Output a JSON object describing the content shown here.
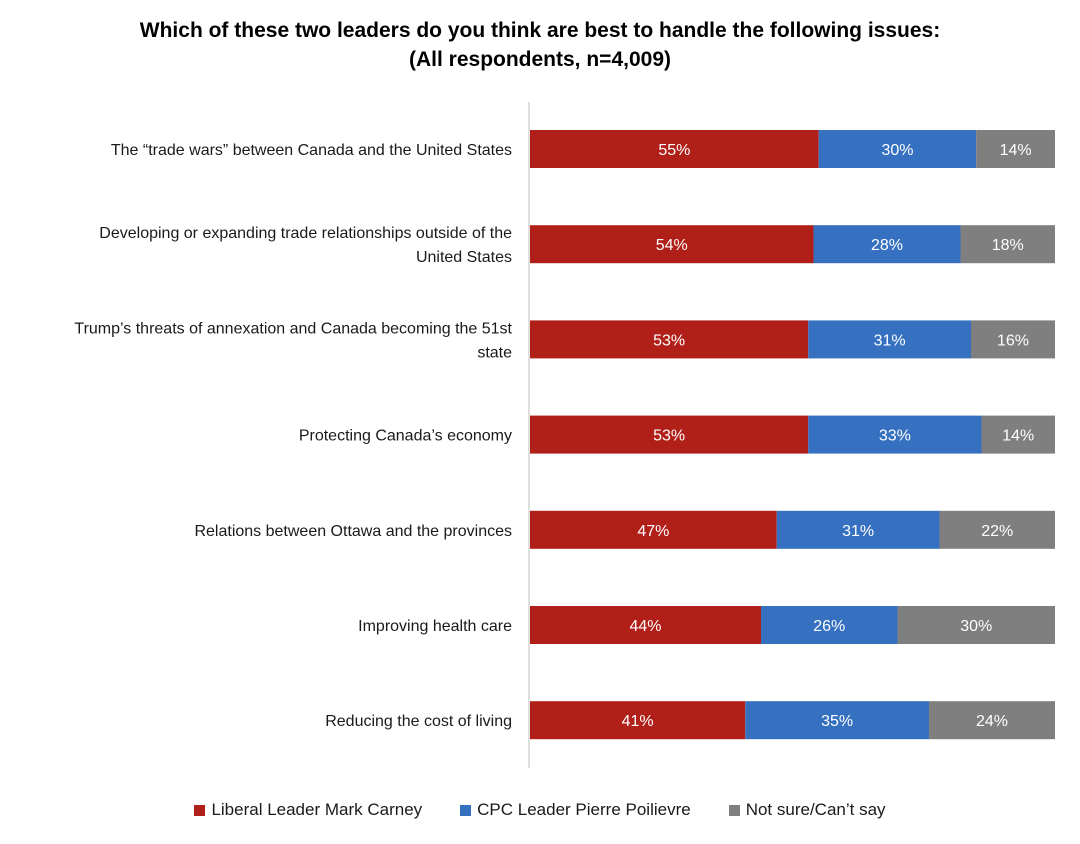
{
  "chart_data": {
    "type": "bar",
    "orientation": "horizontal",
    "stacked": true,
    "title": [
      "Which of these two leaders do you think are best to handle the following issues:",
      "(All respondents, n=4,009)"
    ],
    "categories": [
      [
        "The “trade wars” between Canada and the United States"
      ],
      [
        "Developing or expanding trade relationships outside of the",
        "United States"
      ],
      [
        "Trump’s threats of annexation and Canada becoming the 51st",
        "state"
      ],
      [
        "Protecting Canada’s economy"
      ],
      [
        "Relations between Ottawa and the provinces"
      ],
      [
        "Improving health care"
      ],
      [
        "Reducing the cost of living"
      ]
    ],
    "series": [
      {
        "name": "Liberal Leader Mark Carney",
        "color": "#b11f19",
        "values": [
          55,
          54,
          53,
          53,
          47,
          44,
          41
        ],
        "labels": [
          "55%",
          "54%",
          "53%",
          "53%",
          "47%",
          "44%",
          "41%"
        ]
      },
      {
        "name": "CPC Leader Pierre Poilievre",
        "color": "#3571c0",
        "values": [
          30,
          28,
          31,
          33,
          31,
          26,
          35
        ],
        "labels": [
          "30%",
          "28%",
          "31%",
          "33%",
          "31%",
          "26%",
          "35%"
        ]
      },
      {
        "name": "Not sure/Can’t say",
        "color": "#7f7f7f",
        "values": [
          14,
          18,
          16,
          14,
          22,
          30,
          24
        ],
        "labels": [
          "14%",
          "18%",
          "16%",
          "14%",
          "22%",
          "30%",
          "24%"
        ]
      }
    ],
    "xlim": [
      0,
      100
    ],
    "xlabel": "",
    "ylabel": "",
    "grid": false,
    "legend_position": "bottom"
  }
}
